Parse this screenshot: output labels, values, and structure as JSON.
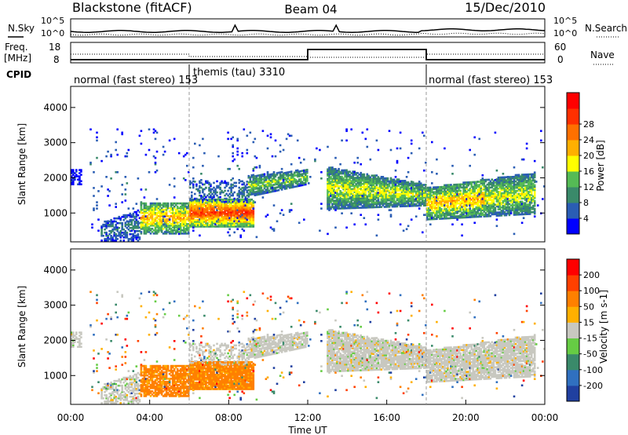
{
  "header": {
    "title": "Blackstone (fitACF)",
    "beam": "Beam 04",
    "date": "15/Dec/2010"
  },
  "noise_panel": {
    "left_label": "N.Sky",
    "right_label": "N.Search",
    "left_ticks": [
      "10^5",
      "10^0"
    ],
    "right_ticks": [
      "10^5",
      "10^0"
    ]
  },
  "freq_panel": {
    "left_label_line1": "Freq.",
    "left_label_line2": "[MHz]",
    "left_ticks": [
      "18",
      "8"
    ],
    "right_label": "Nave",
    "right_ticks": [
      "60",
      "0"
    ]
  },
  "cpid": {
    "label": "CPID",
    "segments": [
      {
        "text": "normal (fast stereo) 153",
        "start_h": 0,
        "end_h": 6
      },
      {
        "text": "themis (tau) 3310",
        "start_h": 6,
        "end_h": 18
      },
      {
        "text": "normal (fast stereo) 153",
        "start_h": 18,
        "end_h": 24
      }
    ]
  },
  "colors": {
    "power": [
      "#0000ff",
      "#2a5db4",
      "#3a8a6a",
      "#55bb55",
      "#ffff00",
      "#ffb000",
      "#ff7000",
      "#ff3000",
      "#ff0000"
    ],
    "velocity": [
      "#2040a0",
      "#3070c0",
      "#3a8a6a",
      "#66cc44",
      "#c8c8c0",
      "#ffb000",
      "#ff8000",
      "#ff4000",
      "#ff0000"
    ]
  },
  "chart_data": [
    {
      "type": "heatmap",
      "name": "power",
      "ylabel": "Slant Range [km]",
      "ylim": [
        180,
        4600
      ],
      "yticks": [
        1000,
        2000,
        3000,
        4000
      ],
      "xlim": [
        0,
        24
      ],
      "colorbar_label": "Power [dB]",
      "colorbar_ticks": [
        "4",
        "8",
        "12",
        "16",
        "20",
        "24",
        "28"
      ],
      "colorbar_range": [
        0,
        32
      ]
    },
    {
      "type": "heatmap",
      "name": "velocity",
      "ylabel": "Slant Range [km]",
      "ylim": [
        180,
        4600
      ],
      "yticks": [
        1000,
        2000,
        3000,
        4000
      ],
      "xlim": [
        0,
        24
      ],
      "xticks": [
        "00:00",
        "04:00",
        "08:00",
        "12:00",
        "16:00",
        "20:00",
        "00:00"
      ],
      "xlabel": "Time UT",
      "colorbar_label": "Velocity [m s-1]",
      "colorbar_ticks": [
        "200",
        "100",
        "50",
        "15",
        "-15",
        "-50",
        "-100",
        "-200"
      ]
    }
  ]
}
